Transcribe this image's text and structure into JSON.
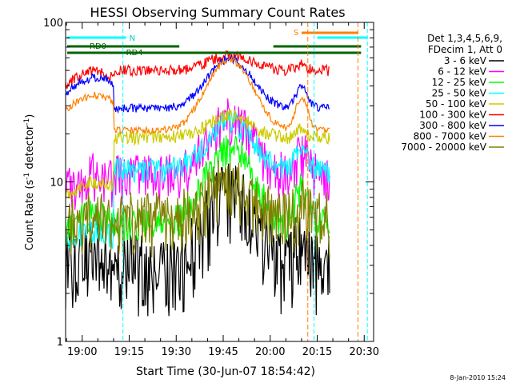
{
  "chart_data": {
    "type": "line",
    "title": "HESSI Observing Summary Count Rates",
    "xlabel": "Start Time (30-Jun-07 18:54:42)",
    "ylabel_main": "Count Rate (s",
    "ylabel_sup": "-1",
    "ylabel_end": " detector",
    "ylabel_sup2": "-1",
    "ylabel_close": ")",
    "yscale": "log",
    "ylim": [
      1,
      100
    ],
    "xlim": [
      "18:54:42",
      "20:33:00"
    ],
    "x_ticks": [
      "19:00",
      "19:15",
      "19:30",
      "19:45",
      "20:00",
      "20:15",
      "20:30"
    ],
    "y_ticks": [
      1,
      10,
      100
    ],
    "y_tick_labels": [
      "1",
      "10",
      "100"
    ],
    "footer_date": "8-Jan-2010 15:24",
    "legend_header": [
      "Det 1,3,4,5,6,9,",
      "FDecim 1, Att 0"
    ],
    "series": [
      {
        "name": "3 - 6 keV",
        "color": "#000000"
      },
      {
        "name": "6 - 12 keV",
        "color": "#ff00ff"
      },
      {
        "name": "12 - 25 keV",
        "color": "#00ff00"
      },
      {
        "name": "25 - 50 keV",
        "color": "#00ffff"
      },
      {
        "name": "50 - 100 keV",
        "color": "#cccc00"
      },
      {
        "name": "100 - 300 keV",
        "color": "#ff0000"
      },
      {
        "name": "300 - 800 keV",
        "color": "#0000ff"
      },
      {
        "name": "800 - 7000 keV",
        "color": "#ff8000"
      },
      {
        "name": "7000 - 20000 keV",
        "color": "#808000"
      }
    ],
    "annotations": {
      "night_label": "N",
      "saa_label": "S",
      "rd0_label": "RD0",
      "rd4_label": "RD4"
    }
  }
}
